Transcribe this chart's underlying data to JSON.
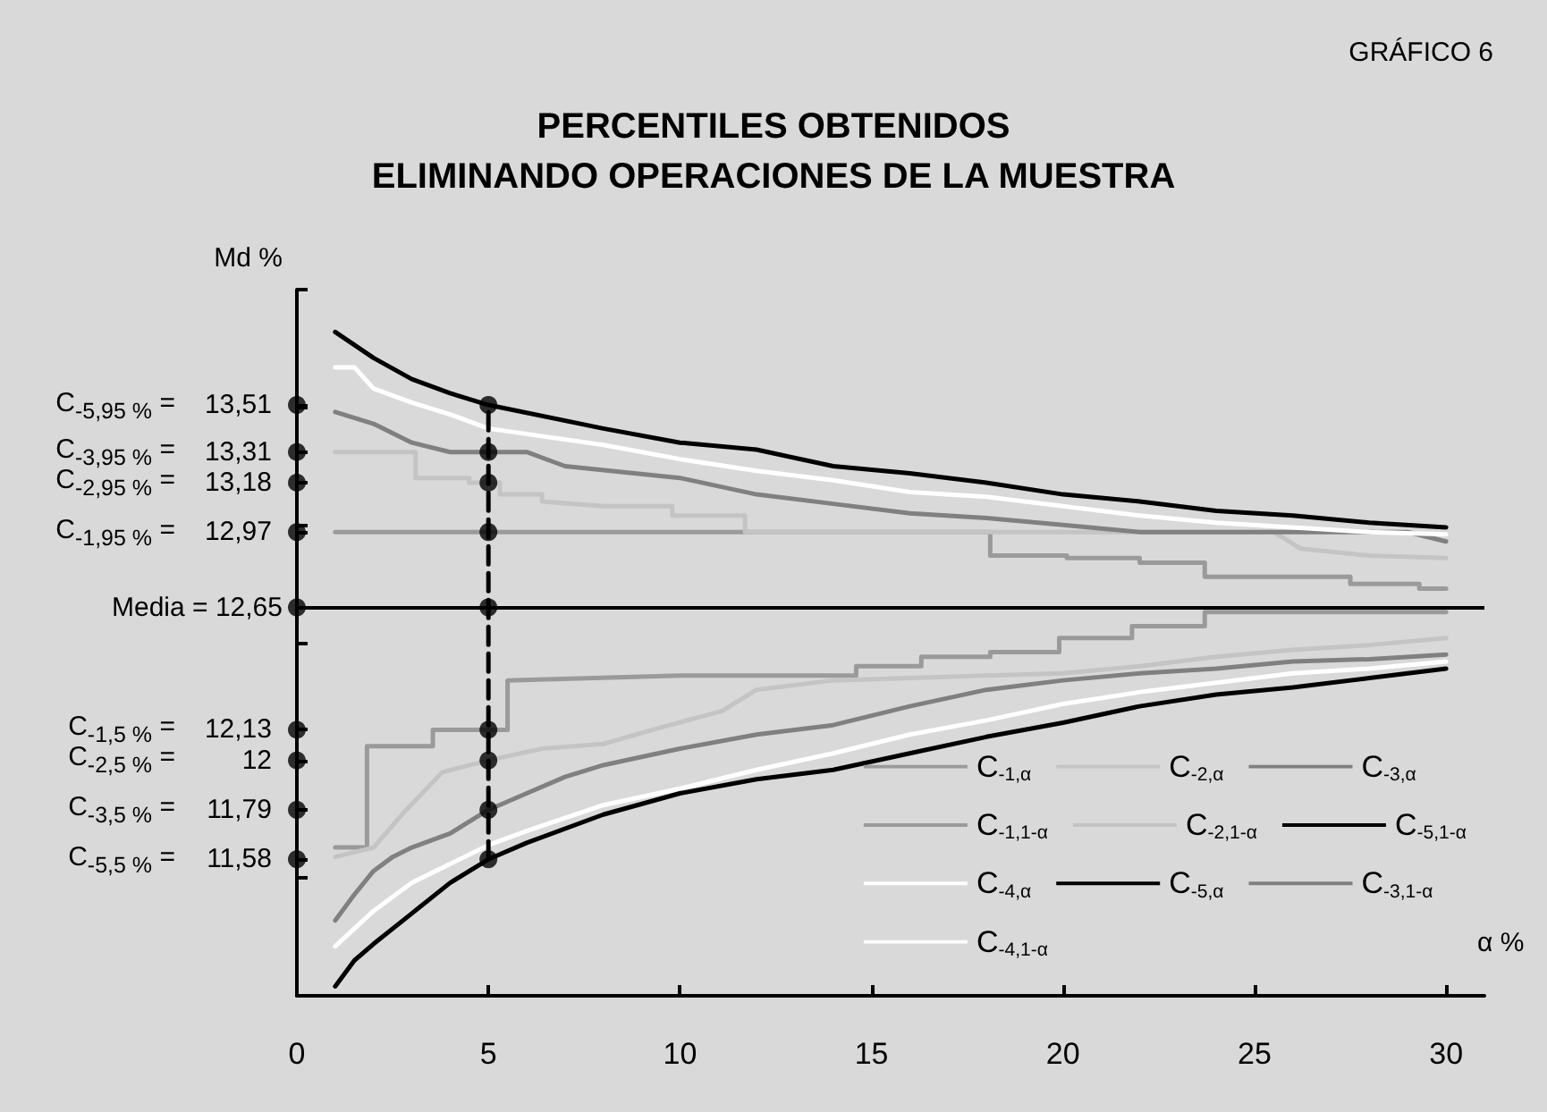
{
  "chart_data": {
    "type": "line",
    "title": "PERCENTILES OBTENIDOS\nELIMINANDO OPERACIONES DE LA MUESTRA",
    "annotations": [
      "GRÁFICO 6",
      "C$_{-5,95 %}$ =",
      "C$_{-3,95 %}$ =",
      "C$_{-2,95 %}$ =",
      "C$_{-1,95 %}$ =",
      "C$_{-1,5 %}$ =",
      "C$_{-2,5 %}$ =",
      "C$_{-3,5 %}$ =",
      "C$_{-5,5 %}$ ="
    ],
    "xlabel": "α %",
    "ylabel": "Md %",
    "xlim": [
      0,
      31
    ],
    "xticks": [
      0,
      5,
      10,
      15,
      20,
      25,
      30
    ],
    "ylim": [
      11,
      14
    ],
    "yticks": [
      {
        "value": 11.5,
        "label": null
      },
      {
        "value": 12,
        "label": null
      },
      {
        "value": 12.5,
        "label": null
      },
      {
        "value": 13,
        "label": null
      },
      {
        "value": 13.5,
        "label": null
      },
      {
        "value": 14,
        "label": null
      },
      {
        "value": 13.51,
        "label": "13,51"
      },
      {
        "value": 13.31,
        "label": "13,31"
      },
      {
        "value": 13.18,
        "label": "13,18"
      },
      {
        "value": 12.97,
        "label": "12,97"
      },
      {
        "value": 12.13,
        "label": "12,13"
      },
      {
        "value": 12,
        "label": "12"
      },
      {
        "value": 11.79,
        "label": "11,79"
      },
      {
        "value": 11.58,
        "label": "11,58"
      }
    ],
    "ref_lines": [
      {
        "axis": "y",
        "value": 12.65,
        "label": "Media = 12,65",
        "color": "#000000"
      }
    ],
    "legend": "bottom right",
    "grid": false,
    "series": [
      {
        "name": "C$_{-1,α}$",
        "color": "#9a9a9a",
        "x": [
          1,
          1.83,
          1.83,
          3.55,
          3.55,
          5.5,
          5.5,
          10,
          13.3,
          14.6,
          14.6,
          16.3,
          16.3,
          18.1,
          18.1,
          19.9,
          19.9,
          21.8,
          21.8,
          23.7,
          23.7,
          30
        ],
        "values": [
          11.63,
          11.63,
          12.06,
          12.06,
          12.13,
          12.13,
          12.34,
          12.36,
          12.36,
          12.36,
          12.4,
          12.4,
          12.44,
          12.44,
          12.46,
          12.46,
          12.52,
          12.52,
          12.57,
          12.57,
          12.63,
          12.63
        ]
      },
      {
        "name": "C$_{-2,α}$",
        "color": "#c4c4c4",
        "x": [
          1,
          2,
          2.8,
          3.8,
          5,
          6.4,
          8,
          9.5,
          11.1,
          12,
          14,
          16,
          18,
          20,
          22,
          24,
          26,
          28,
          30
        ],
        "values": [
          11.59,
          11.63,
          11.78,
          11.95,
          12,
          12.05,
          12.07,
          12.14,
          12.21,
          12.3,
          12.34,
          12.35,
          12.36,
          12.37,
          12.4,
          12.44,
          12.47,
          12.49,
          12.52
        ]
      },
      {
        "name": "C$_{-3,α}$",
        "color": "#808080",
        "x": [
          1,
          1.5,
          2,
          2.5,
          3,
          4,
          5,
          6,
          7,
          8,
          10,
          12,
          14,
          16,
          18,
          20,
          22,
          24,
          26,
          28,
          30
        ],
        "values": [
          11.32,
          11.43,
          11.53,
          11.59,
          11.63,
          11.69,
          11.79,
          11.86,
          11.93,
          11.98,
          12.05,
          12.11,
          12.15,
          12.23,
          12.3,
          12.34,
          12.37,
          12.39,
          12.42,
          12.43,
          12.45
        ]
      },
      {
        "name": "C$_{-1,1-α}$",
        "color": "#9a9a9a",
        "x": [
          1,
          18.1,
          18.1,
          20.1,
          20.1,
          22,
          22,
          23.7,
          23.7,
          27.5,
          27.5,
          29.3,
          29.3,
          30
        ],
        "values": [
          12.97,
          12.97,
          12.87,
          12.87,
          12.86,
          12.86,
          12.84,
          12.84,
          12.78,
          12.78,
          12.75,
          12.75,
          12.73,
          12.73
        ]
      },
      {
        "name": "C$_{-2,1-α}$",
        "color": "#c4c4c4",
        "x": [
          1,
          3.1,
          3.1,
          4.5,
          4.5,
          5.3,
          5.3,
          6.4,
          6.4,
          8,
          9.8,
          9.8,
          11.7,
          11.7,
          25.5,
          26.2,
          28,
          30
        ],
        "values": [
          13.31,
          13.31,
          13.2,
          13.2,
          13.18,
          13.18,
          13.13,
          13.13,
          13.1,
          13.08,
          13.08,
          13.04,
          13.04,
          12.97,
          12.97,
          12.9,
          12.87,
          12.86
        ]
      },
      {
        "name": "C$_{-5,1-α}$",
        "color": "#000000",
        "x": [
          1,
          2,
          3,
          4,
          5,
          8,
          10,
          12,
          14,
          16,
          18,
          20,
          22,
          24,
          26,
          28,
          30
        ],
        "values": [
          13.82,
          13.71,
          13.62,
          13.56,
          13.51,
          13.41,
          13.35,
          13.32,
          13.25,
          13.22,
          13.18,
          13.13,
          13.1,
          13.06,
          13.04,
          13.01,
          12.99
        ]
      },
      {
        "name": "C$_{-4,α}$",
        "color": "#ffffff",
        "x": [
          1,
          2,
          3,
          4,
          5,
          6,
          8,
          10,
          12,
          14,
          16,
          18,
          20,
          22,
          24,
          26,
          28,
          30
        ],
        "values": [
          11.21,
          11.36,
          11.48,
          11.56,
          11.64,
          11.7,
          11.81,
          11.88,
          11.96,
          12.03,
          12.11,
          12.17,
          12.24,
          12.29,
          12.33,
          12.37,
          12.39,
          12.42
        ]
      },
      {
        "name": "C$_{-5,α}$",
        "color": "#000000",
        "x": [
          1,
          1.5,
          2,
          3,
          4,
          5,
          6,
          8,
          10,
          12,
          14,
          16,
          18,
          20,
          22,
          24,
          26,
          28,
          30
        ],
        "values": [
          11.04,
          11.15,
          11.22,
          11.35,
          11.48,
          11.58,
          11.65,
          11.77,
          11.86,
          11.92,
          11.96,
          12.03,
          12.1,
          12.16,
          12.23,
          12.28,
          12.31,
          12.35,
          12.39
        ]
      },
      {
        "name": "C$_{-3,1-α}$",
        "color": "#808080",
        "x": [
          1,
          2,
          3,
          4,
          6,
          7,
          10,
          12,
          14,
          16,
          18,
          20,
          22,
          29,
          30
        ],
        "values": [
          13.48,
          13.43,
          13.35,
          13.31,
          13.31,
          13.25,
          13.2,
          13.13,
          13.09,
          13.05,
          13.03,
          13,
          12.97,
          12.97,
          12.93
        ]
      },
      {
        "name": "C$_{-4,1-α}$",
        "color": "#ffffff",
        "x": [
          1,
          1.5,
          2,
          3,
          4,
          5,
          8,
          10,
          12,
          14,
          16,
          18,
          20,
          22,
          24,
          26,
          28,
          30
        ],
        "values": [
          13.67,
          13.67,
          13.58,
          13.52,
          13.47,
          13.41,
          13.34,
          13.28,
          13.23,
          13.19,
          13.14,
          13.12,
          13.08,
          13.04,
          13.01,
          12.99,
          12.97,
          12.96
        ]
      },
      {
        "type": "scatter",
        "marker": "circle",
        "color": "#000000",
        "x": [
          0,
          0,
          0,
          0,
          0,
          0,
          0,
          0,
          0,
          5,
          5,
          5,
          5,
          5,
          5,
          5,
          5,
          5
        ],
        "values": [
          13.51,
          13.31,
          13.18,
          12.97,
          12.65,
          12.13,
          12,
          11.79,
          11.58,
          13.51,
          13.31,
          13.18,
          12.97,
          12.65,
          12.13,
          12,
          11.79,
          11.58
        ]
      },
      {
        "type": "line",
        "line_style": "dashed",
        "color": "#000000",
        "x": [
          5,
          5
        ],
        "values": [
          11.58,
          13.51
        ]
      }
    ]
  }
}
